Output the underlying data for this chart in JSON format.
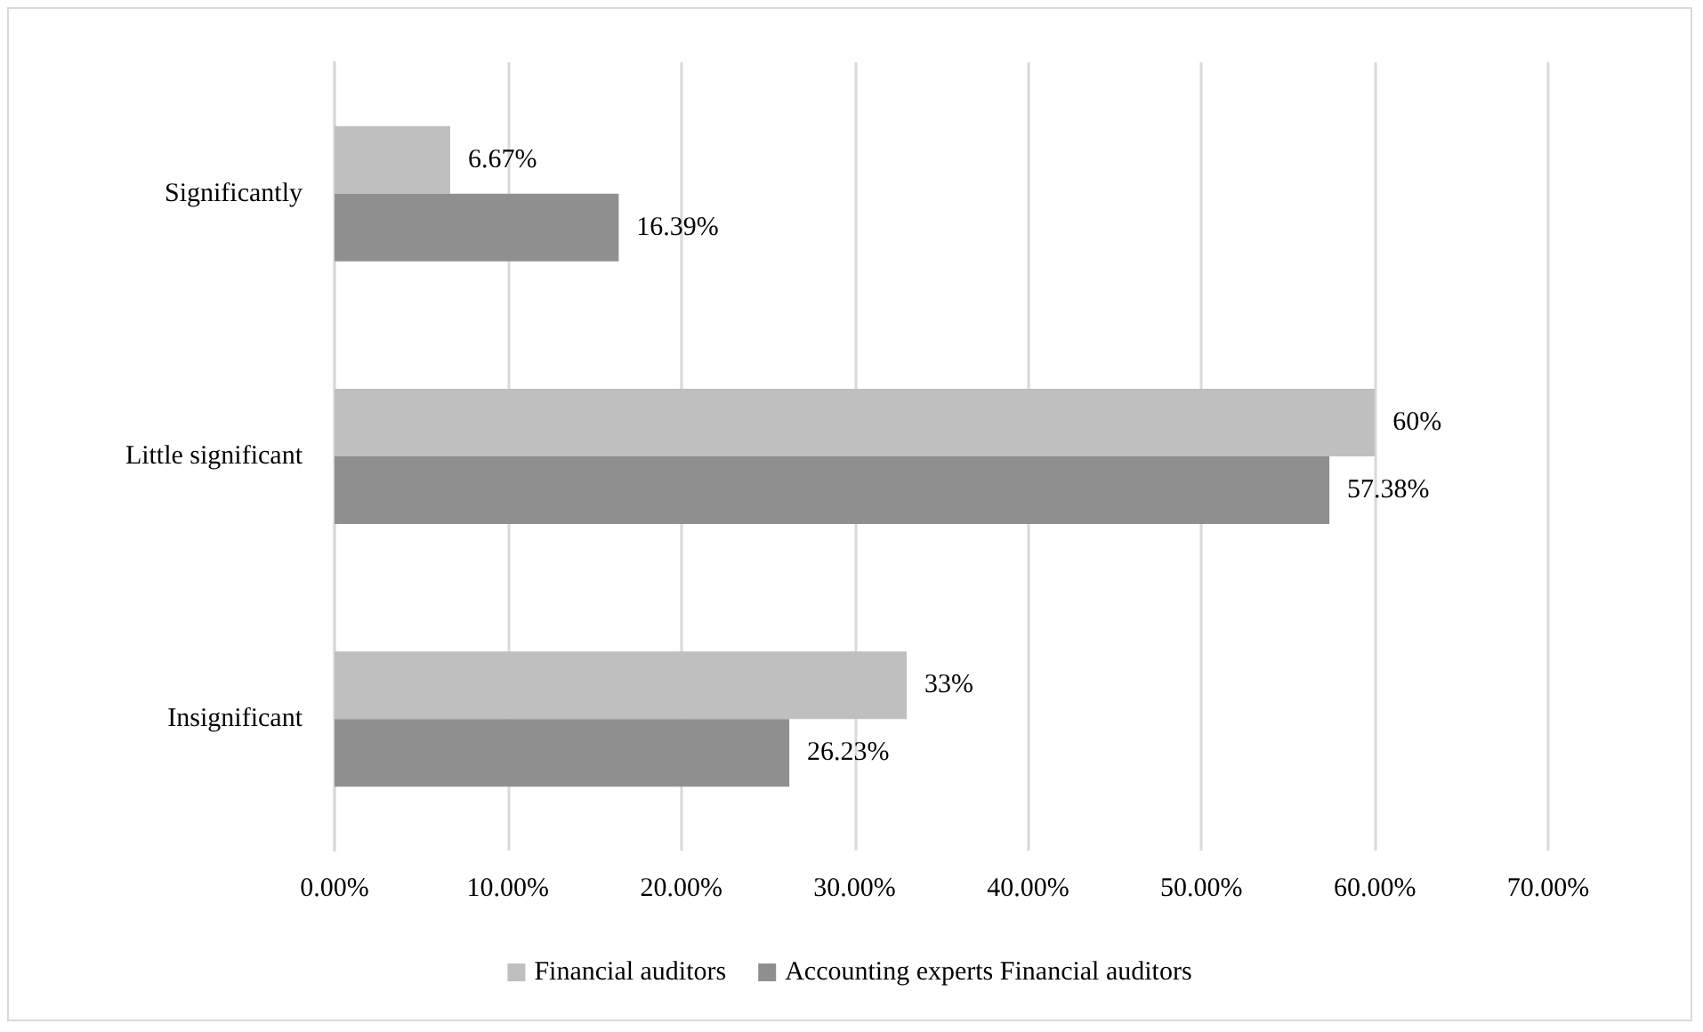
{
  "chart_data": {
    "type": "bar",
    "orientation": "horizontal",
    "categories": [
      "Significantly",
      "Little significant",
      "Insignificant"
    ],
    "series": [
      {
        "name": "Financial auditors",
        "color": "#bfbfbf",
        "values": [
          6.67,
          60,
          33
        ],
        "value_labels": [
          "6.67%",
          "60%",
          "33%"
        ]
      },
      {
        "name": "Accounting experts Financial auditors",
        "color": "#8f8f8f",
        "values": [
          16.39,
          57.38,
          26.23
        ],
        "value_labels": [
          "16.39%",
          "57.38%",
          "26.23%"
        ]
      }
    ],
    "xlim": [
      0,
      70
    ],
    "xticks": [
      {
        "value": 0,
        "label": "0.00%"
      },
      {
        "value": 10,
        "label": "10.00%"
      },
      {
        "value": 20,
        "label": "20.00%"
      },
      {
        "value": 30,
        "label": "30.00%"
      },
      {
        "value": 40,
        "label": "40.00%"
      },
      {
        "value": 50,
        "label": "50.00%"
      },
      {
        "value": 60,
        "label": "60.00%"
      },
      {
        "value": 70,
        "label": "70.00%"
      }
    ],
    "grid": "x",
    "legend": "bottom"
  }
}
